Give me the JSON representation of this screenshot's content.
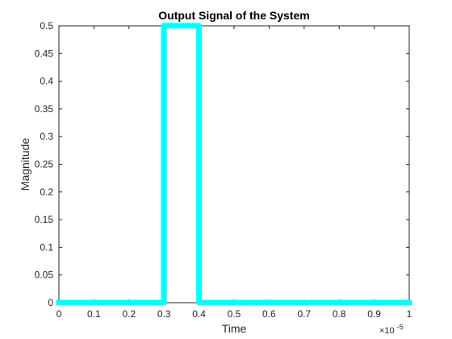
{
  "chart_data": {
    "type": "line",
    "title": "Output Signal of the System",
    "xlabel": "Time",
    "ylabel": "Magnitude",
    "x_exponent": {
      "prefix": "×10",
      "power": "-5"
    },
    "xlim": [
      0,
      1
    ],
    "ylim": [
      0,
      0.5
    ],
    "x_ticks": [
      0,
      0.1,
      0.2,
      0.3,
      0.4,
      0.5,
      0.6,
      0.7,
      0.8,
      0.9,
      1
    ],
    "x_tick_labels": [
      "0",
      "0.1",
      "0.2",
      "0.3",
      "0.4",
      "0.5",
      "0.6",
      "0.7",
      "0.8",
      "0.9",
      "1"
    ],
    "y_ticks": [
      0,
      0.05,
      0.1,
      0.15,
      0.2,
      0.25,
      0.3,
      0.35,
      0.4,
      0.45,
      0.5
    ],
    "y_tick_labels": [
      "0",
      "0.05",
      "0.1",
      "0.15",
      "0.2",
      "0.25",
      "0.3",
      "0.35",
      "0.4",
      "0.45",
      "0.5"
    ],
    "grid": false,
    "series": [
      {
        "color": "#00FFFF",
        "x": [
          0,
          0.3,
          0.3,
          0.4,
          0.4,
          1
        ],
        "y": [
          0,
          0,
          0.5,
          0.5,
          0,
          0
        ]
      }
    ]
  }
}
